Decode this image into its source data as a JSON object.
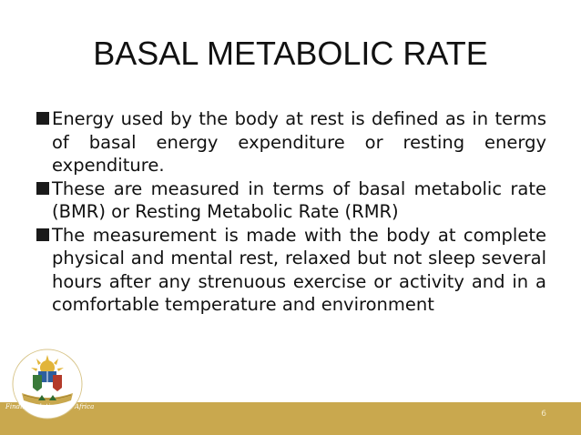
{
  "slide": {
    "title": "BASAL METABOLIC RATE",
    "bullets": [
      "Energy used by the body at rest is defined as in terms of basal energy expenditure or resting energy expenditure.",
      "These are measured in terms of basal metabolic rate (BMR) or Resting Metabolic Rate   (RMR)",
      "The measurement is made with the body at complete physical and mental rest, relaxed but not sleep several hours after any strenuous exercise or activity and in a comfortable temperature and environment"
    ],
    "page_number": "6"
  },
  "logo": {
    "caption": "Finding solutions for Africa",
    "icon": "university-seal-icon"
  },
  "colors": {
    "footer_band": "#c9a84e",
    "text": "#111111",
    "bullet_marker": "#1a1a1a"
  }
}
